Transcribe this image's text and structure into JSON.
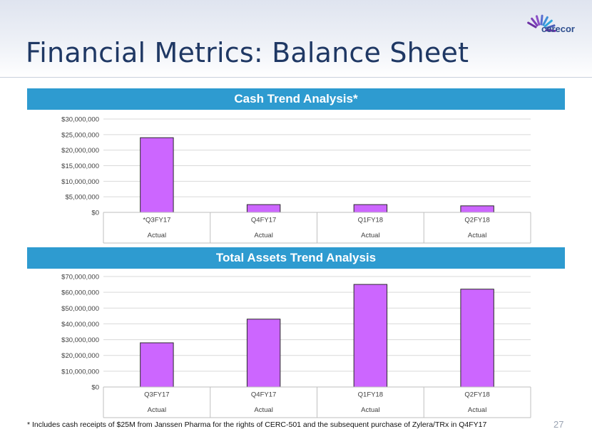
{
  "slide": {
    "title": "Financial Metrics: Balance Sheet",
    "logo_text": "cerecor",
    "footnote": "* Includes cash receipts of $25M from Janssen Pharma for the rights of CERC-501 and the subsequent purchase of Zylera/TRx in Q4FY17",
    "page_number": "27"
  },
  "colors": {
    "accent_bar": "#2e9bd0",
    "bar_fill": "#cc66ff",
    "bar_stroke": "#2b2b2b",
    "title": "#1f3864"
  },
  "chart_data": [
    {
      "type": "bar",
      "title": "Cash Trend Analysis*",
      "categories": [
        "*Q3FY17",
        "Q4FY17",
        "Q1FY18",
        "Q2FY18"
      ],
      "category_sublabels": [
        "Actual",
        "Actual",
        "Actual",
        "Actual"
      ],
      "values": [
        24000000,
        2500000,
        2500000,
        2100000
      ],
      "ylim": [
        0,
        30000000
      ],
      "yticks": [
        0,
        5000000,
        10000000,
        15000000,
        20000000,
        25000000,
        30000000
      ],
      "ytick_labels": [
        "$0",
        "$5,000,000",
        "$10,000,000",
        "$15,000,000",
        "$20,000,000",
        "$25,000,000",
        "$30,000,000"
      ],
      "grid": true,
      "legend": "none"
    },
    {
      "type": "bar",
      "title": "Total Assets Trend Analysis",
      "categories": [
        "Q3FY17",
        "Q4FY17",
        "Q1FY18",
        "Q2FY18"
      ],
      "category_sublabels": [
        "Actual",
        "Actual",
        "Actual",
        "Actual"
      ],
      "values": [
        28000000,
        43000000,
        65000000,
        62000000
      ],
      "ylim": [
        0,
        70000000
      ],
      "yticks": [
        0,
        10000000,
        20000000,
        30000000,
        40000000,
        50000000,
        60000000,
        70000000
      ],
      "ytick_labels": [
        "$0",
        "$10,000,000",
        "$20,000,000",
        "$30,000,000",
        "$40,000,000",
        "$50,000,000",
        "$60,000,000",
        "$70,000,000"
      ],
      "grid": true,
      "legend": "none"
    }
  ]
}
